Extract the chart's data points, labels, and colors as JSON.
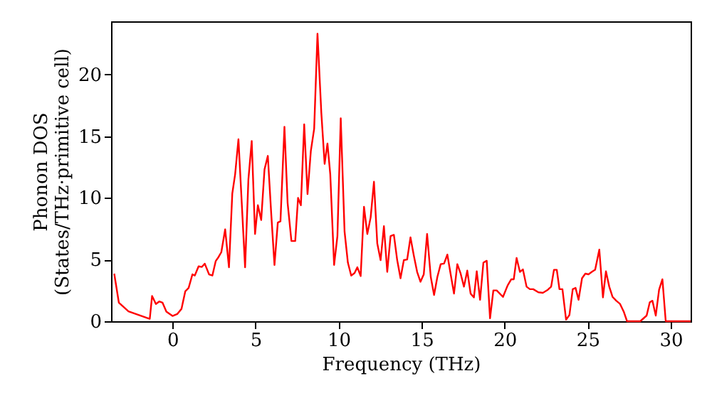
{
  "chart_data": {
    "type": "line",
    "xlabel": "Frequency (THz)",
    "ylabel": "Phonon DOS\n(States/THz·primitive cell)",
    "xlim": [
      -3.7,
      31.2
    ],
    "ylim": [
      0,
      24.3
    ],
    "xticks": [
      0,
      5,
      10,
      15,
      20,
      25,
      30
    ],
    "yticks": [
      0,
      5,
      10,
      15,
      20
    ],
    "grid": false,
    "series": [
      {
        "color": "#ff0000",
        "x": [
          -3.51,
          -3.23,
          -2.65,
          -1.5,
          -1.37,
          -1.23,
          -1.0,
          -0.8,
          -0.6,
          -0.37,
          0,
          0.28,
          0.54,
          0.77,
          0.97,
          1.2,
          1.34,
          1.57,
          1.77,
          1.94,
          2.2,
          2.4,
          2.6,
          2.77,
          2.94,
          3.17,
          3.4,
          3.6,
          3.77,
          3.97,
          4.37,
          4.57,
          4.77,
          4.97,
          5.14,
          5.34,
          5.54,
          5.74,
          5.94,
          6.14,
          6.34,
          6.5,
          6.74,
          6.93,
          7.16,
          7.39,
          7.56,
          7.73,
          7.93,
          8.13,
          8.33,
          8.53,
          8.73,
          8.96,
          9.16,
          9.33,
          9.5,
          9.73,
          9.93,
          10.13,
          10.36,
          10.56,
          10.76,
          10.96,
          11.13,
          11.33,
          11.53,
          11.73,
          11.93,
          12.13,
          12.33,
          12.53,
          12.73,
          12.93,
          13.13,
          13.33,
          13.53,
          13.73,
          13.93,
          14.13,
          14.33,
          14.53,
          14.73,
          14.93,
          15.13,
          15.33,
          15.55,
          15.75,
          15.95,
          16.15,
          16.35,
          16.55,
          16.75,
          16.95,
          17.15,
          17.35,
          17.55,
          17.75,
          17.95,
          18.15,
          18.32,
          18.52,
          18.72,
          18.92,
          19.12,
          19.32,
          19.52,
          19.9,
          20.18,
          20.4,
          20.55,
          20.72,
          20.92,
          21.1,
          21.32,
          21.52,
          21.72,
          22.03,
          22.3,
          22.6,
          22.8,
          22.97,
          23.14,
          23.3,
          23.48,
          23.7,
          23.9,
          24.1,
          24.27,
          24.45,
          24.66,
          24.86,
          25.05,
          25.25,
          25.45,
          25.7,
          25.92,
          26.1,
          26.3,
          26.5,
          26.72,
          26.95,
          27.17,
          27.37,
          28.17,
          28.55,
          28.74,
          28.9,
          29.1,
          29.3,
          29.5,
          29.7,
          31.2
        ],
        "values": [
          3.86,
          1.5,
          0.8,
          0.25,
          0.2,
          2.05,
          1.4,
          1.6,
          1.5,
          0.78,
          0.43,
          0.58,
          1.0,
          2.43,
          2.7,
          3.8,
          3.7,
          4.45,
          4.4,
          4.67,
          3.8,
          3.7,
          4.87,
          5.2,
          5.6,
          7.45,
          4.37,
          10.35,
          11.9,
          14.75,
          4.37,
          11.5,
          14.6,
          7.07,
          9.4,
          8.2,
          12.3,
          13.4,
          8.8,
          4.56,
          8.0,
          8.1,
          15.75,
          9.6,
          6.5,
          6.5,
          10.0,
          9.4,
          15.95,
          10.3,
          13.8,
          15.6,
          23.3,
          16.9,
          12.75,
          14.4,
          11.9,
          4.56,
          6.9,
          16.45,
          7.27,
          4.75,
          3.7,
          3.9,
          4.37,
          3.66,
          9.27,
          7.07,
          8.4,
          11.3,
          6.3,
          4.95,
          7.7,
          4.0,
          6.9,
          7.0,
          4.95,
          3.48,
          4.95,
          5.0,
          6.8,
          5.33,
          4.0,
          3.2,
          3.8,
          7.07,
          3.6,
          2.13,
          3.6,
          4.63,
          4.67,
          5.4,
          3.8,
          2.24,
          4.63,
          3.86,
          2.8,
          4.1,
          2.24,
          1.93,
          4.05,
          1.74,
          4.75,
          4.9,
          0.24,
          2.5,
          2.5,
          1.97,
          2.9,
          3.4,
          3.4,
          5.13,
          4.0,
          4.2,
          2.8,
          2.6,
          2.6,
          2.35,
          2.3,
          2.55,
          2.8,
          4.17,
          4.17,
          2.6,
          2.6,
          0.12,
          0.5,
          2.6,
          2.7,
          1.74,
          3.48,
          3.86,
          3.8,
          4.0,
          4.17,
          5.8,
          1.93,
          4.05,
          2.8,
          1.97,
          1.66,
          1.4,
          0.78,
          0,
          0,
          0.46,
          1.54,
          1.66,
          0.46,
          2.55,
          3.4,
          0,
          0
        ]
      }
    ]
  }
}
